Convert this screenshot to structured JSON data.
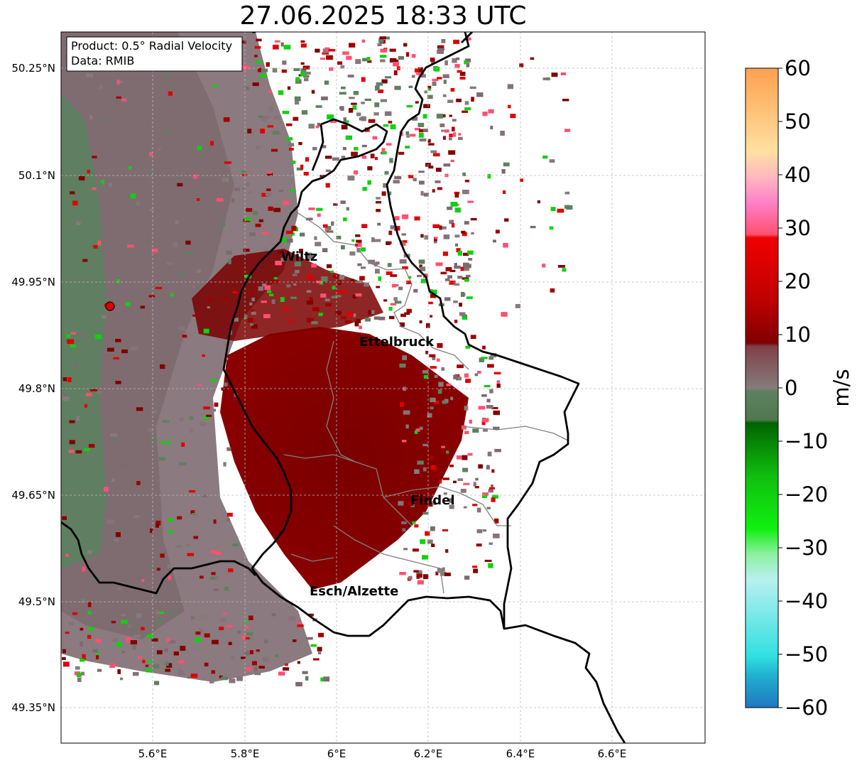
{
  "title": "27.06.2025 18:33 UTC",
  "info_box": {
    "product": "Product: 0.5° Radial Velocity",
    "data": "Data: RMIB"
  },
  "lat_ticks": [
    "50.25°N",
    "50.1°N",
    "49.95°N",
    "49.8°N",
    "49.65°N",
    "49.5°N",
    "49.35°N"
  ],
  "lon_ticks": [
    "5.6°E",
    "5.8°E",
    "6°E",
    "6.2°E",
    "6.4°E",
    "6.6°E"
  ],
  "cities": [
    {
      "name": "Wiltz"
    },
    {
      "name": "Ettelbruck"
    },
    {
      "name": "Findel"
    },
    {
      "name": "Esch/Alzette"
    }
  ],
  "colorbar": {
    "label": "m/s",
    "ticks": [
      "60",
      "50",
      "40",
      "30",
      "20",
      "10",
      "0",
      "−10",
      "−20",
      "−30",
      "−40",
      "−50",
      "−60"
    ],
    "range": [
      -60,
      60
    ],
    "colors": {
      "neg_blue": "#1f78c0",
      "neg_cyan": "#2fe0e0",
      "neg_lightcyan": "#b8f0f0",
      "neg_lightgreen": "#8cf0a0",
      "neg_green": "#10e010",
      "neg_darkgreen": "#006400",
      "zero_green": "#5f8060",
      "zero_gray": "#857b7b",
      "pos_maroon": "#800000",
      "pos_red": "#f00000",
      "pos_pink": "#ff80c8",
      "pos_peach": "#ffe0a0",
      "pos_orange": "#ffa050"
    }
  },
  "radar_site": {
    "marker": "red-circle"
  }
}
